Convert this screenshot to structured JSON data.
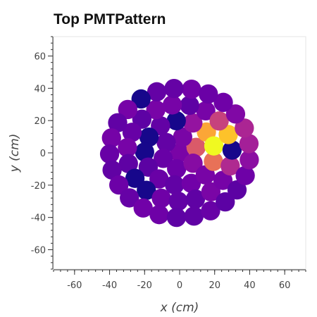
{
  "chart_data": {
    "type": "scatter",
    "title": "Top PMTPattern",
    "xlabel": "x (cm)",
    "ylabel": "y (cm)",
    "xlim": [
      -72,
      72
    ],
    "ylim": [
      -72,
      72
    ],
    "xticks": [
      -60,
      -40,
      -20,
      0,
      20,
      40,
      60
    ],
    "yticks": [
      -60,
      -40,
      -20,
      0,
      20,
      40,
      60
    ],
    "grid": false,
    "legend": "none",
    "marker_radius_cm": 5.5,
    "pattern": {
      "ring_spacing_cm": 10,
      "max_radius_cm": 48,
      "base_value": 0.2,
      "hotspot": {
        "x": 22,
        "y": 6,
        "peak": 1.0,
        "sigma_cm": 9
      },
      "dark_spots": [
        {
          "x": 30,
          "y": 0
        },
        {
          "x": 0,
          "y": 24
        },
        {
          "x": -18,
          "y": 4
        },
        {
          "x": 48,
          "y": -12
        },
        {
          "x": -20,
          "y": -18
        },
        {
          "x": -48,
          "y": -20
        },
        {
          "x": -20,
          "y": 38
        },
        {
          "x": -8,
          "y": 46
        }
      ]
    },
    "colormap": [
      "#0d0887",
      "#46039f",
      "#7201a8",
      "#9c179e",
      "#bd3786",
      "#d8576b",
      "#ed7953",
      "#fb9f3a",
      "#fdca26",
      "#f0f921"
    ]
  }
}
